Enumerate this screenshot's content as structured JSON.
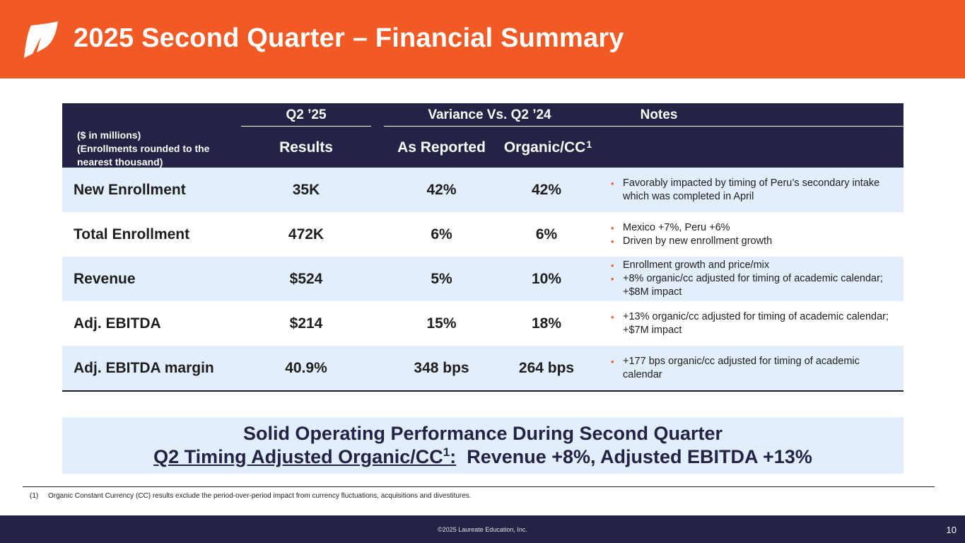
{
  "header": {
    "title": "2025 Second Quarter – Financial Summary",
    "logo_icon": "laureate-leaf-icon",
    "bg_color": "#f15a24"
  },
  "table": {
    "units_lines": [
      "($ in millions)",
      "(Enrollments rounded to the",
      "nearest thousand)"
    ],
    "group_q2": "Q2 ’25",
    "group_variance": "Variance Vs. Q2 ’24",
    "group_notes": "Notes",
    "sub_results": "Results",
    "sub_reported": "As Reported",
    "sub_organic": "Organic/CC",
    "sub_organic_sup": "1",
    "rows": [
      {
        "label": "New Enrollment",
        "results": "35K",
        "reported": "42%",
        "organic": "42%",
        "notes": [
          "Favorably impacted by timing of Peru’s secondary intake which was completed in April"
        ]
      },
      {
        "label": "Total Enrollment",
        "results": "472K",
        "reported": "6%",
        "organic": "6%",
        "notes": [
          "Mexico +7%, Peru +6%",
          "Driven by new enrollment growth"
        ]
      },
      {
        "label": "Revenue",
        "results": "$524",
        "reported": "5%",
        "organic": "10%",
        "notes": [
          "Enrollment growth and price/mix",
          "+8% organic/cc adjusted for timing of academic calendar; +$8M impact"
        ]
      },
      {
        "label": "Adj. EBITDA",
        "results": "$214",
        "reported": "15%",
        "organic": "18%",
        "notes": [
          "+13% organic/cc adjusted for timing of academic calendar; +$7M impact"
        ]
      },
      {
        "label": "Adj. EBITDA margin",
        "results": "40.9%",
        "reported": "348 bps",
        "organic": "264 bps",
        "notes": [
          "+177 bps organic/cc adjusted for timing of academic calendar"
        ]
      }
    ]
  },
  "callout": {
    "line1": "Solid Operating Performance During Second Quarter",
    "line2_underlined": "Q2 Timing Adjusted Organic/CC",
    "line2_sup": "1",
    "line2_colon": ":",
    "line2_rest": "  Revenue +8%, Adjusted EBITDA +13%"
  },
  "footnote": {
    "number": "(1)",
    "text": "Organic Constant Currency (CC) results exclude the period-over-period impact from currency fluctuations, acquisitions and divestitures."
  },
  "footer": {
    "copyright": "©2025 Laureate Education, Inc.",
    "page_number": "10"
  },
  "colors": {
    "accent": "#f15a24",
    "navy": "#222345",
    "shade": "#e2eefb"
  }
}
